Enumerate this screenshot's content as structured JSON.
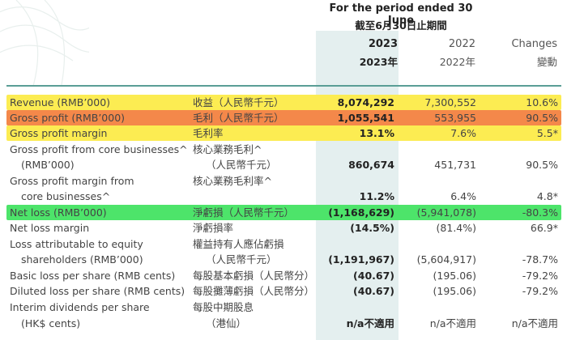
{
  "header": {
    "period_en": "For the period ended 30 June",
    "period_cn": "截至6月30日止期間",
    "col_2023_en": "2023",
    "col_2023_cn": "2023年",
    "col_2022_en": "2022",
    "col_2022_cn": "2022年",
    "col_change_en": "Changes",
    "col_change_cn": "變動"
  },
  "colors": {
    "highlight_yellow": "#fcec52",
    "highlight_orange": "#f4884a",
    "highlight_green": "#4de46a",
    "current_year_column": "#e4efef",
    "header_rule": "#5a9e96"
  },
  "rows": [
    {
      "en": "Revenue (RMB’000)",
      "cn": "收益（人民幣千元）",
      "v2023": "8,074,292",
      "v2022": "7,300,552",
      "change": "10.6%",
      "highlight": "yellow"
    },
    {
      "en": "Gross profit (RMB’000)",
      "cn": "毛利（人民幣千元）",
      "v2023": "1,055,541",
      "v2022": "553,955",
      "change": "90.5%",
      "highlight": "orange"
    },
    {
      "en": "Gross profit margin",
      "cn": "毛利率",
      "v2023": "13.1%",
      "v2022": "7.6%",
      "change": "5.5*",
      "highlight": "yellow"
    },
    {
      "en": "Gross profit from core businesses^",
      "cn": "核心業務毛利^",
      "v2023": "",
      "v2022": "",
      "change": ""
    },
    {
      "en": "(RMB’000)",
      "cn": "（人民幣千元）",
      "v2023": "860,674",
      "v2022": "451,731",
      "change": "90.5%"
    },
    {
      "en": "Gross profit margin from",
      "cn": "核心業務毛利率^",
      "v2023": "",
      "v2022": "",
      "change": ""
    },
    {
      "en": "core businesses^",
      "cn": "",
      "v2023": "11.2%",
      "v2022": "6.4%",
      "change": "4.8*"
    },
    {
      "en": "Net loss (RMB’000)",
      "cn": "淨虧損（人民幣千元）",
      "v2023": "(1,168,629)",
      "v2022": "(5,941,078)",
      "change": "-80.3%",
      "highlight": "green"
    },
    {
      "en": "Net loss margin",
      "cn": "淨虧損率",
      "v2023": "(14.5%)",
      "v2022": "(81.4%)",
      "change": "66.9*"
    },
    {
      "en": "Loss attributable to equity",
      "cn": "權益持有人應佔虧損",
      "v2023": "",
      "v2022": "",
      "change": ""
    },
    {
      "en": "shareholders (RMB’000)",
      "cn": "（人民幣千元）",
      "v2023": "(1,191,967)",
      "v2022": "(5,604,917)",
      "change": "-78.7%"
    },
    {
      "en": "Basic loss per share (RMB cents)",
      "cn": "每股基本虧損（人民幣分）",
      "v2023": "(40.67)",
      "v2022": "(195.06)",
      "change": "-79.2%"
    },
    {
      "en": "Diluted loss per share (RMB cents)",
      "cn": "每股攤薄虧損（人民幣分）",
      "v2023": "(40.67)",
      "v2022": "(195.06)",
      "change": "-79.2%"
    },
    {
      "en": "Interim dividends per share",
      "cn": "每股中期股息",
      "v2023": "",
      "v2022": "",
      "change": ""
    },
    {
      "en": "(HK$ cents)",
      "cn": "（港仙）",
      "v2023": "n/a不適用",
      "v2022": "n/a不適用",
      "change": "n/a不適用"
    }
  ]
}
